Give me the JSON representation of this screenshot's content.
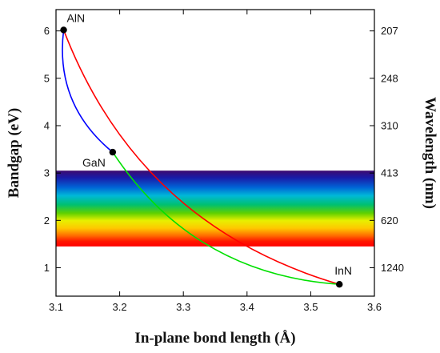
{
  "chart_data": {
    "type": "line",
    "xlabel": "In-plane bond length (Å)",
    "ylabel": "Bandgap (eV)",
    "y2label": "Wavelength (nm)",
    "xlim": [
      3.1,
      3.6
    ],
    "ylim": [
      0.4,
      6.45
    ],
    "xticks": [
      "3.1",
      "3.2",
      "3.3",
      "3.4",
      "3.5",
      "3.6"
    ],
    "yticks": [
      "1",
      "2",
      "3",
      "4",
      "5",
      "6"
    ],
    "y2ticks": [
      {
        "label": "207",
        "at": 6
      },
      {
        "label": "248",
        "at": 5
      },
      {
        "label": "310",
        "at": 4
      },
      {
        "label": "413",
        "at": 3
      },
      {
        "label": "620",
        "at": 2
      },
      {
        "label": "1240",
        "at": 1
      }
    ],
    "visible_band": {
      "ymin": 1.45,
      "ymax": 3.05
    },
    "points": [
      {
        "name": "AlN",
        "x": 3.112,
        "y": 6.02
      },
      {
        "name": "GaN",
        "x": 3.189,
        "y": 3.44
      },
      {
        "name": "InN",
        "x": 3.545,
        "y": 0.65
      }
    ],
    "series": [
      {
        "color": "#ff0000",
        "from": "AlN",
        "to": "InN",
        "bow": -0.45
      },
      {
        "color": "#0000ff",
        "from": "AlN",
        "to": "GaN",
        "bow": -0.5
      },
      {
        "color": "#00e000",
        "from": "GaN",
        "to": "InN",
        "bow": -0.45
      }
    ],
    "grid": false
  }
}
